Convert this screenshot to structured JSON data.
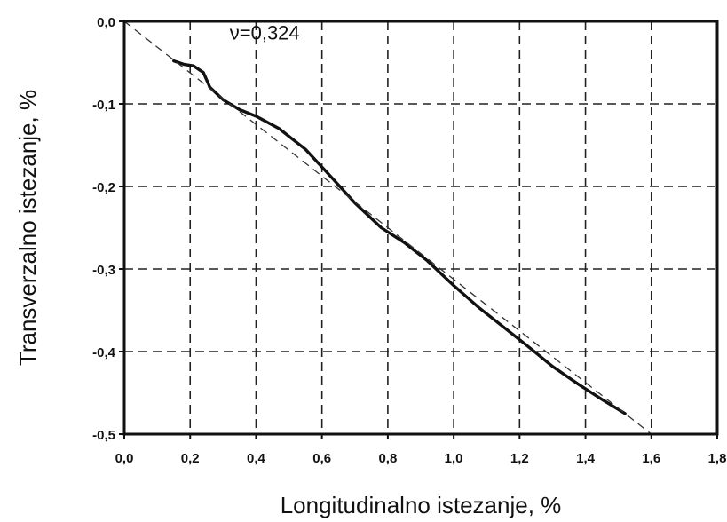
{
  "chart_data": {
    "type": "line",
    "xlabel": "Longitudinalno istezanje, %",
    "ylabel": "Transverzalno istezanje, %",
    "xlim": [
      0.0,
      1.8
    ],
    "ylim": [
      -0.5,
      0.0
    ],
    "x_ticks": [
      "0,0",
      "0,2",
      "0,4",
      "0,6",
      "0,8",
      "1,0",
      "1,2",
      "1,4",
      "1,6",
      "1,8"
    ],
    "y_ticks": [
      "0,0",
      "-0,1",
      "-0,2",
      "-0,3",
      "-0,4",
      "-0,5"
    ],
    "grid": true,
    "annotation": "ν=0,324",
    "series": [
      {
        "style": "measured-thick",
        "x": [
          0.15,
          0.18,
          0.21,
          0.24,
          0.26,
          0.3,
          0.35,
          0.4,
          0.47,
          0.55,
          0.62,
          0.7,
          0.78,
          0.85,
          0.92,
          1.0,
          1.08,
          1.15,
          1.22,
          1.3,
          1.38,
          1.45,
          1.52
        ],
        "y": [
          -0.048,
          -0.052,
          -0.054,
          -0.062,
          -0.08,
          -0.095,
          -0.107,
          -0.115,
          -0.13,
          -0.155,
          -0.185,
          -0.22,
          -0.25,
          -0.268,
          -0.29,
          -0.32,
          -0.348,
          -0.37,
          -0.392,
          -0.418,
          -0.44,
          -0.458,
          -0.475
        ]
      },
      {
        "style": "linear-fit-dashed",
        "x": [
          0.0,
          1.6
        ],
        "y": [
          0.0,
          -0.5
        ]
      }
    ]
  }
}
